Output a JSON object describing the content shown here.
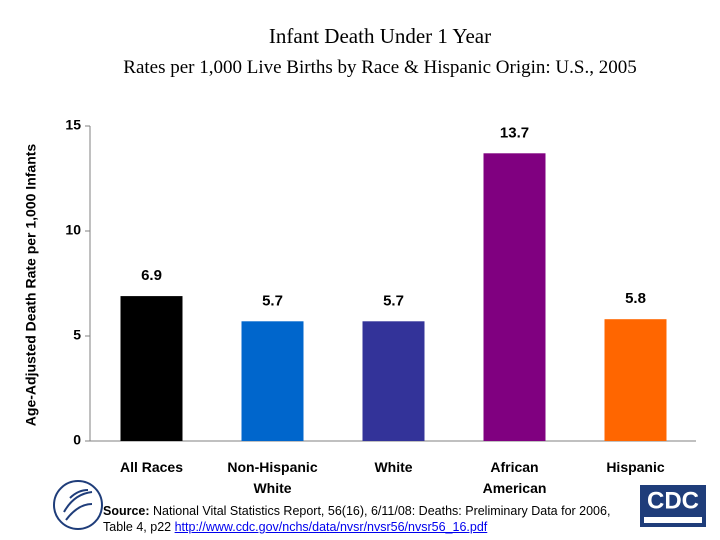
{
  "chart_data": {
    "type": "bar",
    "title": "Infant Death Under 1 Year",
    "subtitle": "Rates per 1,000 Live Births by Race & Hispanic Origin: U.S., 2005",
    "y_label": "Age-Adjusted Death Rate per 1,000 Infants",
    "categories": [
      "All Races",
      "Non-Hispanic\nWhite",
      "White",
      "African\nAmerican",
      "Hispanic"
    ],
    "values": [
      6.9,
      5.7,
      5.7,
      13.7,
      5.8
    ],
    "colors": [
      "#000000",
      "#0066cc",
      "#333399",
      "#800080",
      "#ff6600"
    ],
    "ylim": [
      0,
      15
    ],
    "yticks": [
      0,
      5,
      10,
      15
    ]
  },
  "footer": {
    "source_label": "Source:",
    "source_text": "National Vital Statistics Report, 56(16), 6/11/08: Deaths: Preliminary Data for 2006, Table 4, p22",
    "source_url": "http://www.cdc.gov/nchs/data/nvsr/nvsr56/nvsr56_16.pdf",
    "logo_text": "CDC"
  }
}
